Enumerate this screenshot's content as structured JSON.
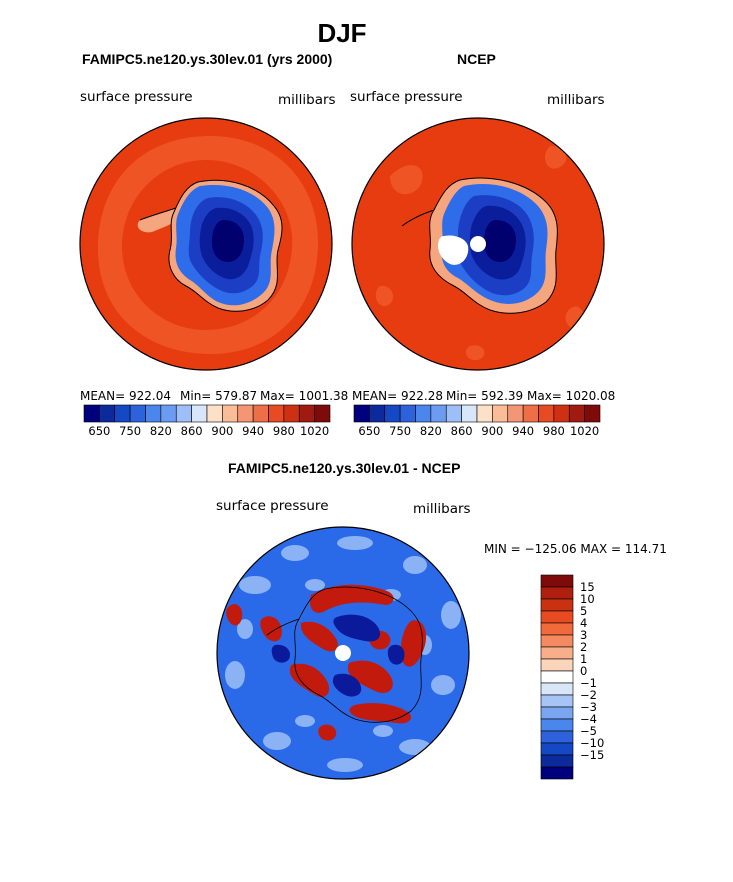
{
  "figure": {
    "title": "DJF"
  },
  "panels": [
    {
      "title": "FAMIPC5.ne120.ys.30lev.01 (yrs 2000)",
      "left_label": "surface pressure",
      "right_label": "millibars",
      "stats": {
        "mean": "MEAN= 922.04",
        "min": "Min= 579.87",
        "max": "Max= 1001.38"
      }
    },
    {
      "title": "NCEP",
      "left_label": "surface pressure",
      "right_label": "millibars",
      "stats": {
        "mean": "MEAN= 922.28",
        "min": "Min= 592.39",
        "max": "Max= 1020.08"
      }
    },
    {
      "title": "FAMIPC5.ne120.ys.30lev.01 - NCEP",
      "left_label": "surface pressure",
      "right_label": "millibars",
      "stats": {
        "minmax": "MIN = −125.06 MAX = 114.71"
      }
    }
  ],
  "colorbar_abs": {
    "colors": [
      "#00007f",
      "#0c2a9c",
      "#1448c4",
      "#2e62dc",
      "#4a86ec",
      "#6c9cf2",
      "#9ebef8",
      "#d8e6f8",
      "#fde0c8",
      "#fbbc98",
      "#f49674",
      "#ee6e48",
      "#e84a22",
      "#cf3014",
      "#a11a10",
      "#7f0a0a"
    ],
    "labels": [
      "650",
      "750",
      "820",
      "860",
      "900",
      "940",
      "980",
      "1020"
    ]
  },
  "colorbar_diff": {
    "colors": [
      "#7f0a0a",
      "#b01e10",
      "#c83210",
      "#e84a22",
      "#f06a3c",
      "#f58a60",
      "#f8ae8a",
      "#fbd4bc",
      "#ffffff",
      "#d8e6f8",
      "#a6c4f6",
      "#7aa6f0",
      "#4a86ec",
      "#2e62dc",
      "#1448c4",
      "#0c2a9c",
      "#00007f"
    ],
    "labels": [
      "15",
      "10",
      "5",
      "4",
      "3",
      "2",
      "1",
      "0",
      "−1",
      "−2",
      "−3",
      "−4",
      "−5",
      "−10",
      "−15"
    ]
  },
  "map_colors": {
    "ocean": "#e63c10",
    "ring": "#ee5424",
    "ice_edge": "#f6a67e",
    "ice_low": "#2f6cea",
    "ice_mid": "#1c3ec4",
    "ice_high": "#0a1e9c",
    "ice_core": "#00006e",
    "diff_bg": "#2a6ae8",
    "diff_light": "#8ab2f4",
    "diff_red": "#c21a0c",
    "diff_dark": "#0a1a9a"
  }
}
